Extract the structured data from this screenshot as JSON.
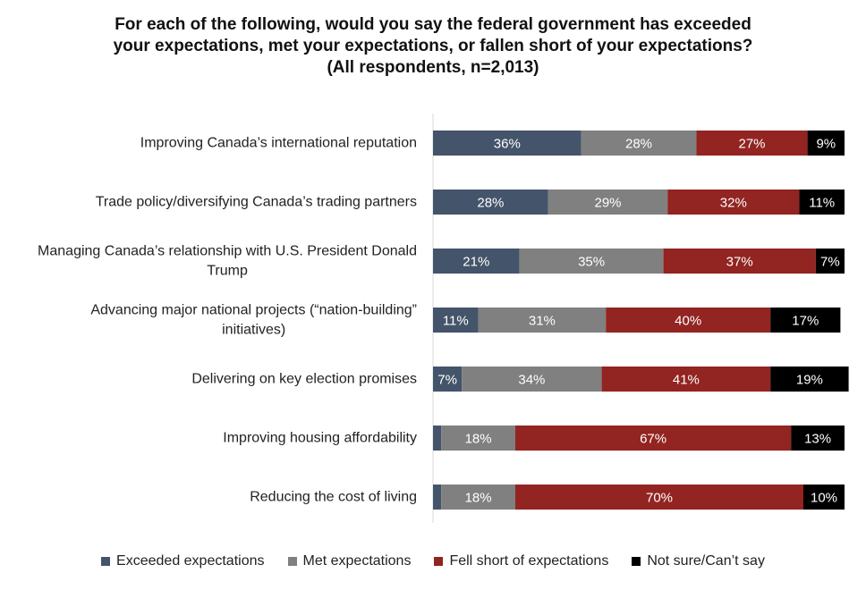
{
  "chart_data": {
    "type": "bar",
    "orientation": "horizontal",
    "stacked": true,
    "title_lines": [
      "For each of the following, would you say the federal government has exceeded",
      "your expectations, met your expectations, or fallen short of your expectations?",
      "(All respondents, n=2,013)"
    ],
    "categories": [
      [
        "Improving Canada’s international reputation"
      ],
      [
        "Trade policy/diversifying Canada’s trading partners"
      ],
      [
        "Managing Canada’s relationship with U.S. President Donald",
        "Trump"
      ],
      [
        "Advancing major national projects (“nation-building”",
        "initiatives)"
      ],
      [
        "Delivering on key election promises"
      ],
      [
        "Improving housing affordability"
      ],
      [
        "Reducing the cost of living"
      ]
    ],
    "series": [
      {
        "name": "Exceeded expectations",
        "color": "#44546a",
        "values": [
          36,
          28,
          21,
          11,
          7,
          2,
          2
        ],
        "labels": [
          "36%",
          "28%",
          "21%",
          "11%",
          "7%",
          "",
          ""
        ]
      },
      {
        "name": "Met expectations",
        "color": "#808080",
        "values": [
          28,
          29,
          35,
          31,
          34,
          18,
          18
        ],
        "labels": [
          "28%",
          "29%",
          "35%",
          "31%",
          "34%",
          "18%",
          "18%"
        ]
      },
      {
        "name": "Fell short of expectations",
        "color": "#922421",
        "values": [
          27,
          32,
          37,
          40,
          41,
          67,
          70
        ],
        "labels": [
          "27%",
          "32%",
          "37%",
          "40%",
          "41%",
          "67%",
          "70%"
        ]
      },
      {
        "name": "Not sure/Can’t say",
        "color": "#000000",
        "values": [
          9,
          11,
          7,
          17,
          19,
          13,
          10
        ],
        "labels": [
          "9%",
          "11%",
          "7%",
          "17%",
          "19%",
          "13%",
          "10%"
        ]
      }
    ],
    "legend_position": "bottom"
  }
}
